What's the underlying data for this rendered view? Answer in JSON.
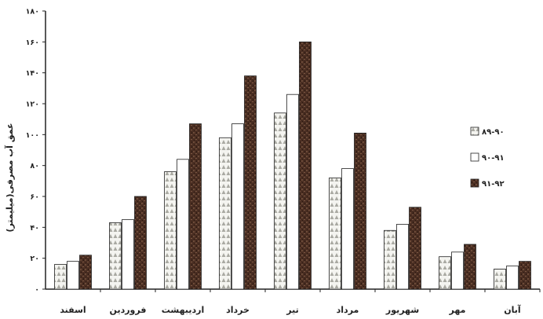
{
  "chart_data": {
    "type": "bar",
    "title": "",
    "xlabel": "",
    "ylabel": "عمق آب مصرفی(میلیمتر)",
    "ylim": [
      0,
      180
    ],
    "yticks": [
      "۰",
      "۲۰",
      "۴۰",
      "۶۰",
      "۸۰",
      "۱۰۰",
      "۱۲۰",
      "۱۴۰",
      "۱۶۰",
      "۱۸۰"
    ],
    "categories": [
      "اسفند",
      "فروردین",
      "اردیبهشت",
      "خرداد",
      "تیر",
      "مرداد",
      "شهریور",
      "مهر",
      "آبان"
    ],
    "series": [
      {
        "name": "۸۹-۹۰",
        "pattern": "triangles",
        "color": "#9a9a9a",
        "values": [
          16,
          43,
          76,
          98,
          114,
          72,
          38,
          21,
          13
        ]
      },
      {
        "name": "۹۰-۹۱",
        "pattern": "white",
        "color": "#ffffff",
        "values": [
          18,
          45,
          84,
          107,
          126,
          78,
          42,
          24,
          15
        ]
      },
      {
        "name": "۹۱-۹۲",
        "pattern": "dark-texture",
        "color": "#5a3a2a",
        "values": [
          22,
          60,
          107,
          138,
          160,
          101,
          53,
          29,
          18
        ]
      }
    ],
    "legend_position": "right",
    "grid": false
  }
}
